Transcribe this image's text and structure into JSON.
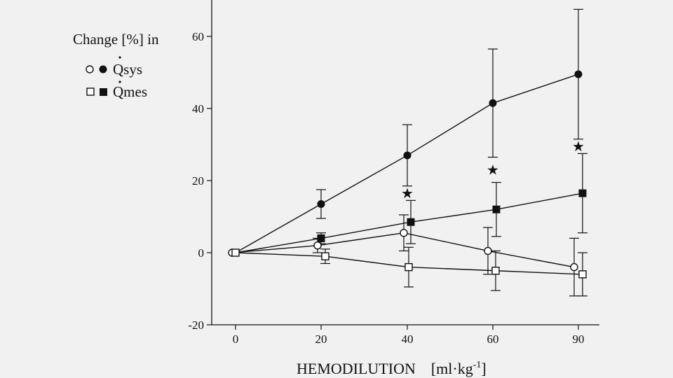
{
  "chart_data": {
    "type": "line",
    "title": "",
    "xlabel": "HEMODILUTION",
    "xlabel_unit_prefix": "[ml·kg",
    "xlabel_unit_exp": "-1",
    "xlabel_unit_suffix": "]",
    "ylabel": "",
    "legend": {
      "title": "Change [%] in",
      "placement": "top-left",
      "entries": [
        {
          "markers": [
            "open-circle",
            "filled-circle"
          ],
          "label": "Qsys",
          "dot": true
        },
        {
          "markers": [
            "open-square",
            "filled-square"
          ],
          "label": "Qmes",
          "dot": true
        }
      ]
    },
    "categories": [
      "0",
      "20",
      "40",
      "60",
      "90"
    ],
    "x": [
      0,
      1,
      2,
      3,
      4
    ],
    "ylim": [
      -20,
      70
    ],
    "yticks": [
      "-20",
      "0",
      "20",
      "40",
      "60"
    ],
    "yticks_values": [
      -20,
      0,
      20,
      40,
      60
    ],
    "grid": false,
    "series": [
      {
        "marker": "filled-circle",
        "values": [
          0,
          13.5,
          27,
          41.5,
          49.5
        ],
        "err": [
          0,
          4,
          8.5,
          15,
          18
        ]
      },
      {
        "marker": "filled-square",
        "values": [
          0,
          4,
          8.5,
          12,
          16.5
        ],
        "err": [
          0,
          1.5,
          6,
          7.5,
          11
        ]
      },
      {
        "marker": "open-circle",
        "values": [
          0,
          2,
          5.5,
          0.5,
          -4
        ],
        "err": [
          0,
          2,
          5,
          6.5,
          8
        ]
      },
      {
        "marker": "open-square",
        "values": [
          0,
          -1,
          -4,
          -5,
          -6
        ],
        "err": [
          0,
          2,
          5.5,
          5.5,
          6
        ]
      }
    ],
    "annotations": [
      {
        "text": "★",
        "x": 2,
        "y": 16.5
      },
      {
        "text": "★",
        "x": 3,
        "y": 23
      },
      {
        "text": "★",
        "x": 4,
        "y": 29.5
      }
    ]
  }
}
